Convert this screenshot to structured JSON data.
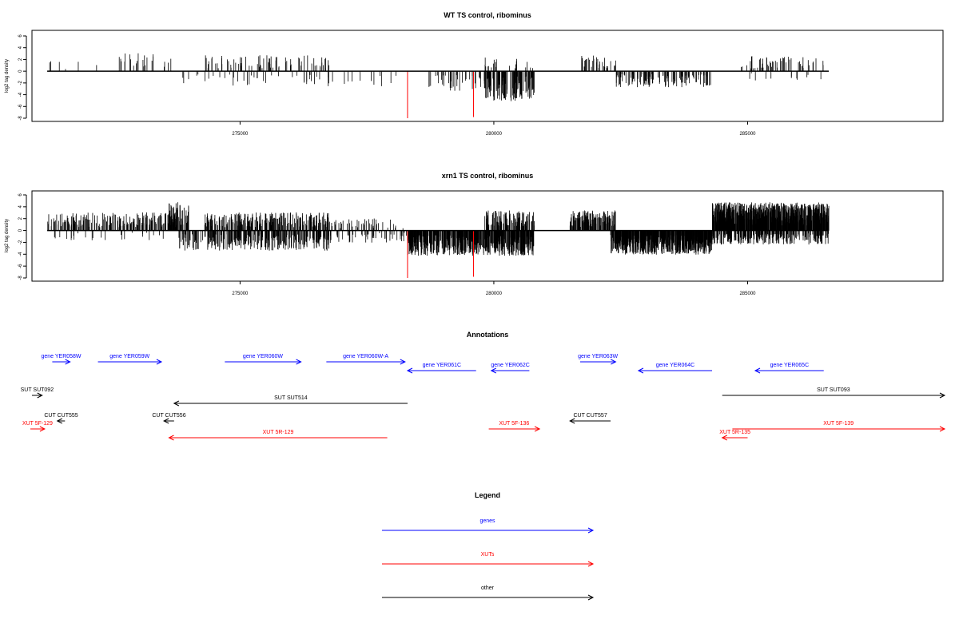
{
  "tracks": [
    {
      "title": "WT TS control, ribominus",
      "ylabel": "log2 tag density",
      "ylim": [
        -8,
        7
      ],
      "yticks": [
        6,
        4,
        2,
        0,
        -2,
        -4,
        -6,
        -8
      ],
      "xlim": [
        271000,
        288800
      ],
      "xticks": [
        275000,
        280000,
        285000
      ],
      "xtick_labels": [
        "275000",
        "280000",
        "285000"
      ],
      "density_model": {
        "seed": 7,
        "segments": [
          {
            "start": 271200,
            "end": 272200,
            "strand": "+",
            "density": 0.006,
            "mean": 1.0
          },
          {
            "start": 272500,
            "end": 273800,
            "strand": "+",
            "density": 0.018,
            "mean": 1.8
          },
          {
            "start": 273800,
            "end": 274300,
            "strand": "-",
            "density": 0.01,
            "mean": -1.2
          },
          {
            "start": 274300,
            "end": 276800,
            "strand": "+",
            "density": 0.03,
            "mean": 1.6
          },
          {
            "start": 274300,
            "end": 276800,
            "strand": "-",
            "density": 0.014,
            "mean": -1.5
          },
          {
            "start": 276800,
            "end": 278200,
            "strand": "-",
            "density": 0.008,
            "mean": -1.6
          },
          {
            "start": 278700,
            "end": 279900,
            "strand": "-",
            "density": 0.03,
            "mean": -2.0
          },
          {
            "start": 279800,
            "end": 280800,
            "strand": "-",
            "density": 0.12,
            "mean": -3.0
          },
          {
            "start": 279800,
            "end": 280800,
            "strand": "+",
            "density": 0.02,
            "mean": 1.4
          },
          {
            "start": 281700,
            "end": 282400,
            "strand": "+",
            "density": 0.05,
            "mean": 1.6
          },
          {
            "start": 282400,
            "end": 284300,
            "strand": "-",
            "density": 0.06,
            "mean": -1.6
          },
          {
            "start": 284800,
            "end": 286500,
            "strand": "+",
            "density": 0.03,
            "mean": 1.5
          },
          {
            "start": 285000,
            "end": 286500,
            "strand": "-",
            "density": 0.008,
            "mean": -1.0
          }
        ]
      },
      "highlights": [
        {
          "x": 278300,
          "value": -8,
          "color": "#ff0000"
        },
        {
          "x": 279600,
          "value": -7.8,
          "color": "#ff0000"
        }
      ]
    },
    {
      "title": "xrn1 TS control, ribominus",
      "ylabel": "log2 tag density",
      "ylim": [
        -8,
        7
      ],
      "yticks": [
        6,
        4,
        2,
        0,
        -2,
        -4,
        -6,
        -8
      ],
      "xlim": [
        271000,
        288800
      ],
      "xticks": [
        275000,
        280000,
        285000
      ],
      "xtick_labels": [
        "275000",
        "280000",
        "285000"
      ],
      "density_model": {
        "seed": 13,
        "segments": [
          {
            "start": 271200,
            "end": 273800,
            "strand": "+",
            "density": 0.08,
            "mean": 1.8
          },
          {
            "start": 271200,
            "end": 273800,
            "strand": "-",
            "density": 0.01,
            "mean": -1.0
          },
          {
            "start": 273600,
            "end": 274000,
            "strand": "+",
            "density": 0.12,
            "mean": 2.8
          },
          {
            "start": 273800,
            "end": 276800,
            "strand": "-",
            "density": 0.1,
            "mean": -2.0
          },
          {
            "start": 274300,
            "end": 276800,
            "strand": "+",
            "density": 0.1,
            "mean": 1.8
          },
          {
            "start": 276800,
            "end": 278300,
            "strand": "+",
            "density": 0.03,
            "mean": 1.2
          },
          {
            "start": 276800,
            "end": 278300,
            "strand": "-",
            "density": 0.03,
            "mean": -1.2
          },
          {
            "start": 278300,
            "end": 280800,
            "strand": "-",
            "density": 0.22,
            "mean": -2.5
          },
          {
            "start": 279800,
            "end": 280800,
            "strand": "+",
            "density": 0.12,
            "mean": 2.0
          },
          {
            "start": 281500,
            "end": 282400,
            "strand": "+",
            "density": 0.15,
            "mean": 2.0
          },
          {
            "start": 282300,
            "end": 284300,
            "strand": "-",
            "density": 0.3,
            "mean": -2.4
          },
          {
            "start": 284300,
            "end": 286600,
            "strand": "+",
            "density": 0.35,
            "mean": 2.8
          },
          {
            "start": 284300,
            "end": 286600,
            "strand": "-",
            "density": 0.12,
            "mean": -1.4
          }
        ]
      },
      "highlights": [
        {
          "x": 278300,
          "value": -8,
          "color": "#ff0000"
        },
        {
          "x": 279600,
          "value": -7.8,
          "color": "#ff0000"
        }
      ]
    }
  ],
  "annotations": {
    "title": "Annotations",
    "features": [
      {
        "label": "gene YER058W",
        "from": 271300,
        "to": 271650,
        "type": "gene",
        "row": 0
      },
      {
        "label": "gene YER059W",
        "from": 272200,
        "to": 273450,
        "type": "gene",
        "row": 0
      },
      {
        "label": "gene YER060W",
        "from": 274700,
        "to": 276200,
        "type": "gene",
        "row": 0
      },
      {
        "label": "gene YER060W-A",
        "from": 276700,
        "to": 278250,
        "type": "gene",
        "row": 0
      },
      {
        "label": "gene YER061C",
        "from": 279650,
        "to": 278300,
        "type": "gene",
        "row": 1
      },
      {
        "label": "gene YER062C",
        "from": 280700,
        "to": 279950,
        "type": "gene",
        "row": 1
      },
      {
        "label": "gene YER063W",
        "from": 281700,
        "to": 282400,
        "type": "gene",
        "row": 0
      },
      {
        "label": "gene YER064C",
        "from": 284300,
        "to": 282850,
        "type": "gene",
        "row": 1
      },
      {
        "label": "gene YER065C",
        "from": 286500,
        "to": 285150,
        "type": "gene",
        "row": 1
      },
      {
        "label": "SUT SUT092",
        "from": 270900,
        "to": 271100,
        "type": "other",
        "row": 2
      },
      {
        "label": "SUT SUT514",
        "from": 278300,
        "to": 273700,
        "type": "other",
        "row": 3
      },
      {
        "label": "SUT SUT093",
        "from": 284500,
        "to": 289000,
        "type": "other",
        "row": 2
      },
      {
        "label": "CUT CUT555",
        "from": 271550,
        "to": 271400,
        "type": "other",
        "row": 4
      },
      {
        "label": "CUT CUT556",
        "from": 273700,
        "to": 273500,
        "type": "other",
        "row": 4
      },
      {
        "label": "CUT CUT557",
        "from": 282300,
        "to": 281500,
        "type": "other",
        "row": 4
      },
      {
        "label": "XUT 5F-129",
        "from": 270500,
        "to": 271150,
        "type": "xut",
        "row": 5
      },
      {
        "label": "XUT 5R-129",
        "from": 277900,
        "to": 273600,
        "type": "xut",
        "row": 6
      },
      {
        "label": "XUT 5F-136",
        "from": 279900,
        "to": 280900,
        "type": "xut",
        "row": 5
      },
      {
        "label": "XUT 5R-135",
        "from": 285000,
        "to": 284500,
        "type": "xut",
        "row": 6
      },
      {
        "label": "XUT 5F-139",
        "from": 284700,
        "to": 289000,
        "type": "xut",
        "row": 5
      }
    ]
  },
  "legend": {
    "title": "Legend",
    "items": [
      {
        "label": "genes",
        "color": "#0000ff"
      },
      {
        "label": "XUTs",
        "color": "#ff0000"
      },
      {
        "label": "other",
        "color": "#000000"
      }
    ]
  },
  "colors": {
    "gene": "#0000ff",
    "xut": "#ff0000",
    "other": "#000000",
    "bars": "#000000",
    "axis": "#000000"
  }
}
